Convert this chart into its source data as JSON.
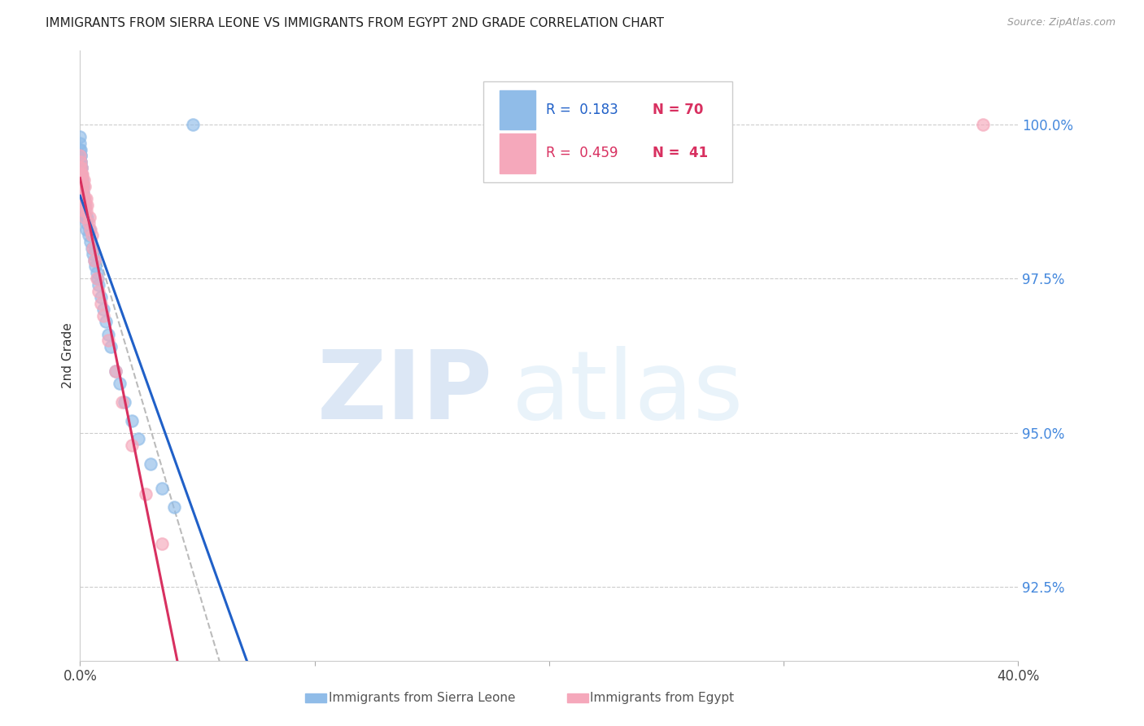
{
  "title": "IMMIGRANTS FROM SIERRA LEONE VS IMMIGRANTS FROM EGYPT 2ND GRADE CORRELATION CHART",
  "source": "Source: ZipAtlas.com",
  "ylabel": "2nd Grade",
  "y_ticks": [
    92.5,
    95.0,
    97.5,
    100.0
  ],
  "y_tick_labels": [
    "92.5%",
    "95.0%",
    "97.5%",
    "100.0%"
  ],
  "x_min": 0.0,
  "x_max": 40.0,
  "y_min": 91.3,
  "y_max": 101.2,
  "color_sierra": "#90bce8",
  "color_egypt": "#f5a8bb",
  "color_sierra_line": "#2060c8",
  "color_egypt_line": "#d83060",
  "color_ytick": "#4488dd",
  "color_title": "#222222",
  "color_source": "#999999",
  "color_grid": "#cccccc",
  "color_dashed": "#bbbbbb",
  "watermark_zip_color": "#c0d5ee",
  "watermark_atlas_color": "#d0e5f5",
  "legend_box_color": "#dddddd",
  "legend_r1_color": "#2060c8",
  "legend_n1_color": "#d83060",
  "legend_r2_color": "#d83060",
  "legend_n2_color": "#d83060",
  "sl_x": [
    0.0,
    0.0,
    0.0,
    0.0,
    0.0,
    0.0,
    0.0,
    0.0,
    0.0,
    0.0,
    0.02,
    0.02,
    0.03,
    0.03,
    0.04,
    0.05,
    0.05,
    0.06,
    0.07,
    0.08,
    0.09,
    0.1,
    0.1,
    0.11,
    0.12,
    0.13,
    0.14,
    0.15,
    0.16,
    0.17,
    0.18,
    0.2,
    0.22,
    0.25,
    0.28,
    0.3,
    0.35,
    0.4,
    0.45,
    0.5,
    0.55,
    0.6,
    0.65,
    0.7,
    0.75,
    0.8,
    0.9,
    1.0,
    1.1,
    1.2,
    1.3,
    1.5,
    1.7,
    1.9,
    2.2,
    2.5,
    3.0,
    3.5,
    4.0,
    0.0,
    0.01,
    0.02,
    0.03,
    0.04,
    0.05,
    0.06,
    0.07,
    0.08,
    0.09,
    4.8
  ],
  "sl_y": [
    99.8,
    99.6,
    99.4,
    99.2,
    99.1,
    99.0,
    98.9,
    98.8,
    98.7,
    98.6,
    99.5,
    99.3,
    99.4,
    99.2,
    99.1,
    99.3,
    99.0,
    99.1,
    98.9,
    99.0,
    98.8,
    99.1,
    98.9,
    98.8,
    99.0,
    98.7,
    98.9,
    98.6,
    98.8,
    98.5,
    98.7,
    98.6,
    98.5,
    98.4,
    98.3,
    98.5,
    98.2,
    98.3,
    98.1,
    98.0,
    97.9,
    97.8,
    97.7,
    97.6,
    97.5,
    97.4,
    97.2,
    97.0,
    96.8,
    96.6,
    96.4,
    96.0,
    95.8,
    95.5,
    95.2,
    94.9,
    94.5,
    94.1,
    93.8,
    99.7,
    99.5,
    99.6,
    99.4,
    99.3,
    99.2,
    99.1,
    99.0,
    98.9,
    98.8,
    100.0
  ],
  "eg_x": [
    0.0,
    0.0,
    0.0,
    0.02,
    0.03,
    0.05,
    0.07,
    0.08,
    0.1,
    0.12,
    0.15,
    0.18,
    0.2,
    0.22,
    0.25,
    0.28,
    0.3,
    0.35,
    0.4,
    0.45,
    0.5,
    0.55,
    0.6,
    0.7,
    0.8,
    0.9,
    1.0,
    1.2,
    1.5,
    1.8,
    2.2,
    2.8,
    3.5,
    0.04,
    0.06,
    0.09,
    0.11,
    0.13,
    0.16,
    0.19,
    38.5
  ],
  "eg_y": [
    99.5,
    99.3,
    99.1,
    99.4,
    99.2,
    99.3,
    99.1,
    99.2,
    99.0,
    98.9,
    99.1,
    98.8,
    99.0,
    98.7,
    98.8,
    98.6,
    98.7,
    98.4,
    98.5,
    98.3,
    98.2,
    98.0,
    97.8,
    97.5,
    97.3,
    97.1,
    96.9,
    96.5,
    96.0,
    95.5,
    94.8,
    94.0,
    93.2,
    99.2,
    99.1,
    99.0,
    98.8,
    98.7,
    98.6,
    98.5,
    100.0
  ]
}
